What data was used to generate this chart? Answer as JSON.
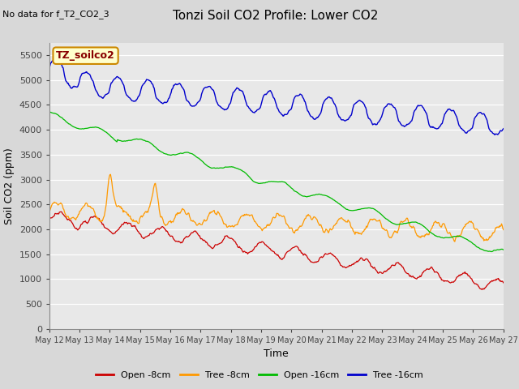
{
  "title": "Tonzi Soil CO2 Profile: Lower CO2",
  "subtitle": "No data for f_T2_CO2_3",
  "xlabel": "Time",
  "ylabel": "Soil CO2 (ppm)",
  "ylim": [
    0,
    5750
  ],
  "yticks": [
    0,
    500,
    1000,
    1500,
    2000,
    2500,
    3000,
    3500,
    4000,
    4500,
    5000,
    5500
  ],
  "legend_labels": [
    "Open -8cm",
    "Tree -8cm",
    "Open -16cm",
    "Tree -16cm"
  ],
  "legend_colors": [
    "#cc0000",
    "#ff9900",
    "#00bb00",
    "#0000cc"
  ],
  "annotation_text": "TZ_soilco2",
  "annotation_edge_color": "#cc8800",
  "annotation_face_color": "#ffffcc",
  "annotation_text_color": "#880000",
  "bg_color": "#e8e8e8",
  "x_tick_labels": [
    "May 12",
    "May 13",
    "May 14",
    "May 15",
    "May 16",
    "May 17",
    "May 18",
    "May 19",
    "May 20",
    "May 21",
    "May 22",
    "May 23",
    "May 24",
    "May 25",
    "May 26",
    "May 27"
  ],
  "n_points": 720
}
